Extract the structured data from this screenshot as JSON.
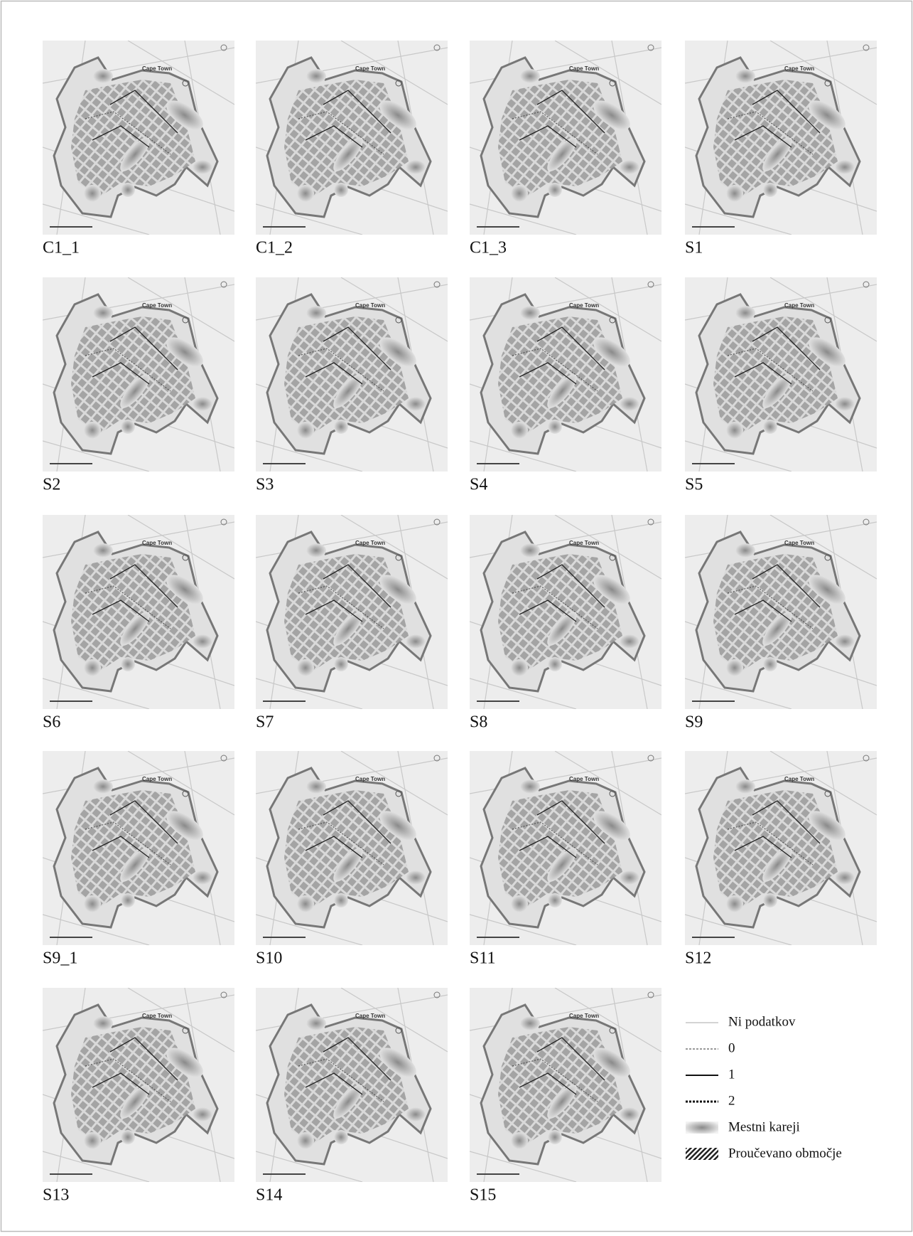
{
  "panels": [
    "C1_1",
    "C1_2",
    "C1_3",
    "S1",
    "S2",
    "S3",
    "S4",
    "S5",
    "S6",
    "S7",
    "S8",
    "S9",
    "S9_1",
    "S10",
    "S11",
    "S12",
    "S13",
    "S14",
    "S15"
  ],
  "map_label": "Cape Town",
  "legend": [
    "Ni podatkov",
    "0",
    "1",
    "2",
    "Mestni kareji",
    "Proučevano območje"
  ]
}
